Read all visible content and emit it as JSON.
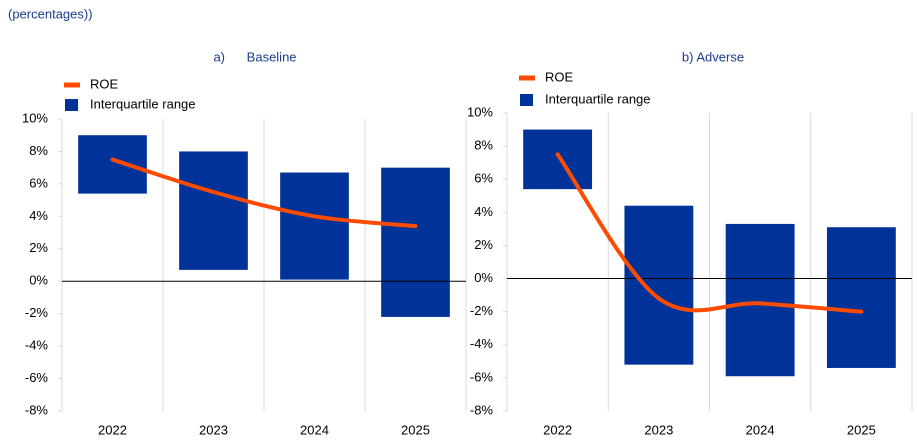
{
  "subtitle": "(percentages))",
  "chart_data": [
    {
      "type": "bar",
      "title": "a)      Baseline",
      "categories": [
        "2022",
        "2023",
        "2024",
        "2025"
      ],
      "series": [
        {
          "name": "ROE",
          "type": "line",
          "color": "#ff4b00",
          "values": [
            7.5,
            5.5,
            4.0,
            3.4
          ]
        },
        {
          "name": "Interquartile range",
          "type": "range",
          "color": "#003399",
          "values": [
            [
              5.4,
              9.0
            ],
            [
              0.7,
              8.0
            ],
            [
              0.1,
              6.7
            ],
            [
              -2.2,
              7.0
            ]
          ]
        }
      ],
      "ylim": [
        -8,
        10
      ],
      "yticks": [
        {
          "value": -8,
          "label": "-8%"
        },
        {
          "value": -6,
          "label": "-6%"
        },
        {
          "value": -4,
          "label": "-4%"
        },
        {
          "value": -2,
          "label": "-2%"
        },
        {
          "value": 0,
          "label": "0%"
        },
        {
          "value": 2,
          "label": "2%"
        },
        {
          "value": 4,
          "label": "4%"
        },
        {
          "value": 6,
          "label": "6%"
        },
        {
          "value": 8,
          "label": "8%"
        },
        {
          "value": 10,
          "label": "10%"
        }
      ],
      "legend": "top-left"
    },
    {
      "type": "bar",
      "title": "b) Adverse",
      "categories": [
        "2022",
        "2023",
        "2024",
        "2025"
      ],
      "series": [
        {
          "name": "ROE",
          "type": "line",
          "color": "#ff4b00",
          "values": [
            7.5,
            -1.2,
            -1.5,
            -2.0
          ]
        },
        {
          "name": "Interquartile range",
          "type": "range",
          "color": "#003399",
          "values": [
            [
              5.4,
              9.0
            ],
            [
              -5.2,
              4.4
            ],
            [
              -5.9,
              3.3
            ],
            [
              -5.4,
              3.1
            ]
          ]
        }
      ],
      "ylim": [
        -8,
        10
      ],
      "yticks": [
        {
          "value": -8,
          "label": "-8%"
        },
        {
          "value": -6,
          "label": "-6%"
        },
        {
          "value": -4,
          "label": "-4%"
        },
        {
          "value": -2,
          "label": "-2%"
        },
        {
          "value": 0,
          "label": "0%"
        },
        {
          "value": 2,
          "label": "2%"
        },
        {
          "value": 4,
          "label": "4%"
        },
        {
          "value": 6,
          "label": "6%"
        },
        {
          "value": 8,
          "label": "8%"
        },
        {
          "value": 10,
          "label": "10%"
        }
      ],
      "legend": "top-left"
    }
  ]
}
